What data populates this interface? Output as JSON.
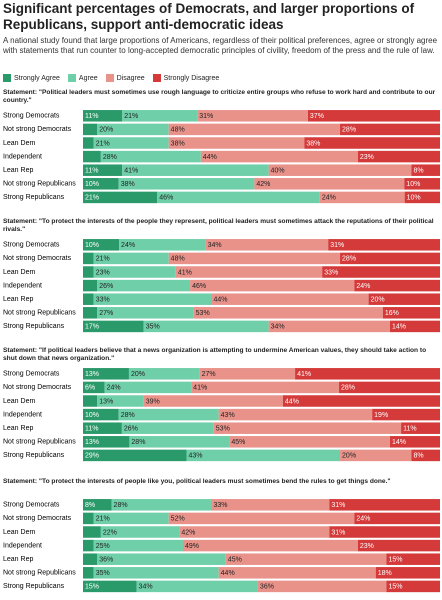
{
  "header": {
    "title": "Significant percentages of Democrats, and larger proportions of Republicans, support anti-democratic ideas",
    "subtitle": "A national study found that large proportions of Americans, regardless of their political preferences, agree or strongly agree with statements that run counter to long-accepted democratic principles of civility, freedom of the press and the rule of law."
  },
  "chart_data": [
    {
      "type": "stacked-bar",
      "title": "Statement: \"Political leaders must sometimes use rough language to criticize entire groups who refuse to work hard and contribute to our country.\"",
      "categories": [
        "Strong Democrats",
        "Not strong Democrats",
        "Lean Dem",
        "Independent",
        "Lean Rep",
        "Not strong Republicans",
        "Strong Republicans"
      ],
      "series": [
        {
          "name": "Strongly Agree",
          "color": "#2a9a6b",
          "values": [
            11,
            4,
            3,
            5,
            11,
            10,
            21
          ],
          "value_labels": [
            "11%",
            null,
            null,
            null,
            "11%",
            "10%",
            "21%"
          ]
        },
        {
          "name": "Agree",
          "color": "#6fcfa9",
          "values": [
            21,
            20,
            21,
            28,
            41,
            38,
            46
          ],
          "value_labels": [
            "21%",
            "20%",
            "21%",
            "28%",
            "41%",
            "38%",
            "46%"
          ]
        },
        {
          "name": "Disagree",
          "color": "#e8928a",
          "values": [
            31,
            48,
            38,
            44,
            40,
            42,
            24
          ],
          "value_labels": [
            "31%",
            "48%",
            "38%",
            "44%",
            "40%",
            "42%",
            "24%"
          ]
        },
        {
          "name": "Strongly Disagree",
          "color": "#d43a3a",
          "values": [
            37,
            28,
            38,
            23,
            8,
            10,
            10
          ],
          "value_labels": [
            "37%",
            "28%",
            "38%",
            "23%",
            "8%",
            "10%",
            "10%"
          ]
        }
      ]
    },
    {
      "type": "stacked-bar",
      "title": "Statement: \"To protect the interests of the people they represent, political leaders must sometimes attack the reputations of their political rivals.\"",
      "categories": [
        "Strong Democrats",
        "Not strong Democrats",
        "Lean Dem",
        "Independent",
        "Lean Rep",
        "Not strong Republicans",
        "Strong Republicans"
      ],
      "series": [
        {
          "name": "Strongly Agree",
          "color": "#2a9a6b",
          "values": [
            10,
            3,
            3,
            4,
            3,
            4,
            17
          ],
          "value_labels": [
            "10%",
            null,
            null,
            null,
            null,
            null,
            "17%"
          ]
        },
        {
          "name": "Agree",
          "color": "#6fcfa9",
          "values": [
            24,
            21,
            23,
            26,
            33,
            27,
            35
          ],
          "value_labels": [
            "24%",
            "21%",
            "23%",
            "26%",
            "33%",
            "27%",
            "35%"
          ]
        },
        {
          "name": "Disagree",
          "color": "#e8928a",
          "values": [
            34,
            48,
            41,
            46,
            44,
            53,
            34
          ],
          "value_labels": [
            "34%",
            "48%",
            "41%",
            "46%",
            "44%",
            "53%",
            "34%"
          ]
        },
        {
          "name": "Strongly Disagree",
          "color": "#d43a3a",
          "values": [
            31,
            28,
            33,
            24,
            20,
            16,
            14
          ],
          "value_labels": [
            "31%",
            "28%",
            "33%",
            "24%",
            "20%",
            "16%",
            "14%"
          ]
        }
      ]
    },
    {
      "type": "stacked-bar",
      "title": "Statement: \"If political leaders believe that a news organization is attempting to undermine American values, they should take action to shut down that news organization.\"",
      "categories": [
        "Strong Democrats",
        "Not strong Democrats",
        "Lean Dem",
        "Independent",
        "Lean Rep",
        "Not strong Republicans",
        "Strong Republicans"
      ],
      "series": [
        {
          "name": "Strongly Agree",
          "color": "#2a9a6b",
          "values": [
            13,
            6,
            4,
            10,
            11,
            13,
            29
          ],
          "value_labels": [
            "13%",
            "6%",
            null,
            "10%",
            "11%",
            "13%",
            "29%"
          ]
        },
        {
          "name": "Agree",
          "color": "#6fcfa9",
          "values": [
            20,
            24,
            13,
            28,
            26,
            28,
            43
          ],
          "value_labels": [
            "20%",
            "24%",
            "13%",
            "28%",
            "26%",
            "28%",
            "43%"
          ]
        },
        {
          "name": "Disagree",
          "color": "#e8928a",
          "values": [
            27,
            41,
            39,
            43,
            53,
            45,
            20
          ],
          "value_labels": [
            "27%",
            "41%",
            "39%",
            "43%",
            "53%",
            "45%",
            "20%"
          ]
        },
        {
          "name": "Strongly Disagree",
          "color": "#d43a3a",
          "values": [
            41,
            28,
            44,
            19,
            11,
            14,
            8
          ],
          "value_labels": [
            "41%",
            "28%",
            "44%",
            "19%",
            "11%",
            "14%",
            "8%"
          ]
        }
      ]
    },
    {
      "type": "stacked-bar",
      "title": "Statement: \"To protect the interests of people like you, political leaders must sometimes bend the rules to get things done.\"",
      "categories": [
        "Strong Democrats",
        "Not strong Democrats",
        "Lean Dem",
        "Independent",
        "Lean Rep",
        "Not strong Republicans",
        "Strong Republicans"
      ],
      "series": [
        {
          "name": "Strongly Agree",
          "color": "#2a9a6b",
          "values": [
            8,
            3,
            5,
            3,
            4,
            3,
            15
          ],
          "value_labels": [
            "8%",
            null,
            null,
            null,
            null,
            null,
            "15%"
          ]
        },
        {
          "name": "Agree",
          "color": "#6fcfa9",
          "values": [
            28,
            21,
            22,
            25,
            36,
            35,
            34
          ],
          "value_labels": [
            "28%",
            "21%",
            "22%",
            "25%",
            "36%",
            "35%",
            "34%"
          ]
        },
        {
          "name": "Disagree",
          "color": "#e8928a",
          "values": [
            33,
            52,
            42,
            49,
            45,
            44,
            36
          ],
          "value_labels": [
            "33%",
            "52%",
            "42%",
            "49%",
            "45%",
            "44%",
            "36%"
          ]
        },
        {
          "name": "Strongly Disagree",
          "color": "#d43a3a",
          "values": [
            31,
            24,
            31,
            23,
            15,
            18,
            15
          ],
          "value_labels": [
            "31%",
            "24%",
            "31%",
            "23%",
            "15%",
            "18%",
            "15%"
          ]
        }
      ]
    }
  ]
}
